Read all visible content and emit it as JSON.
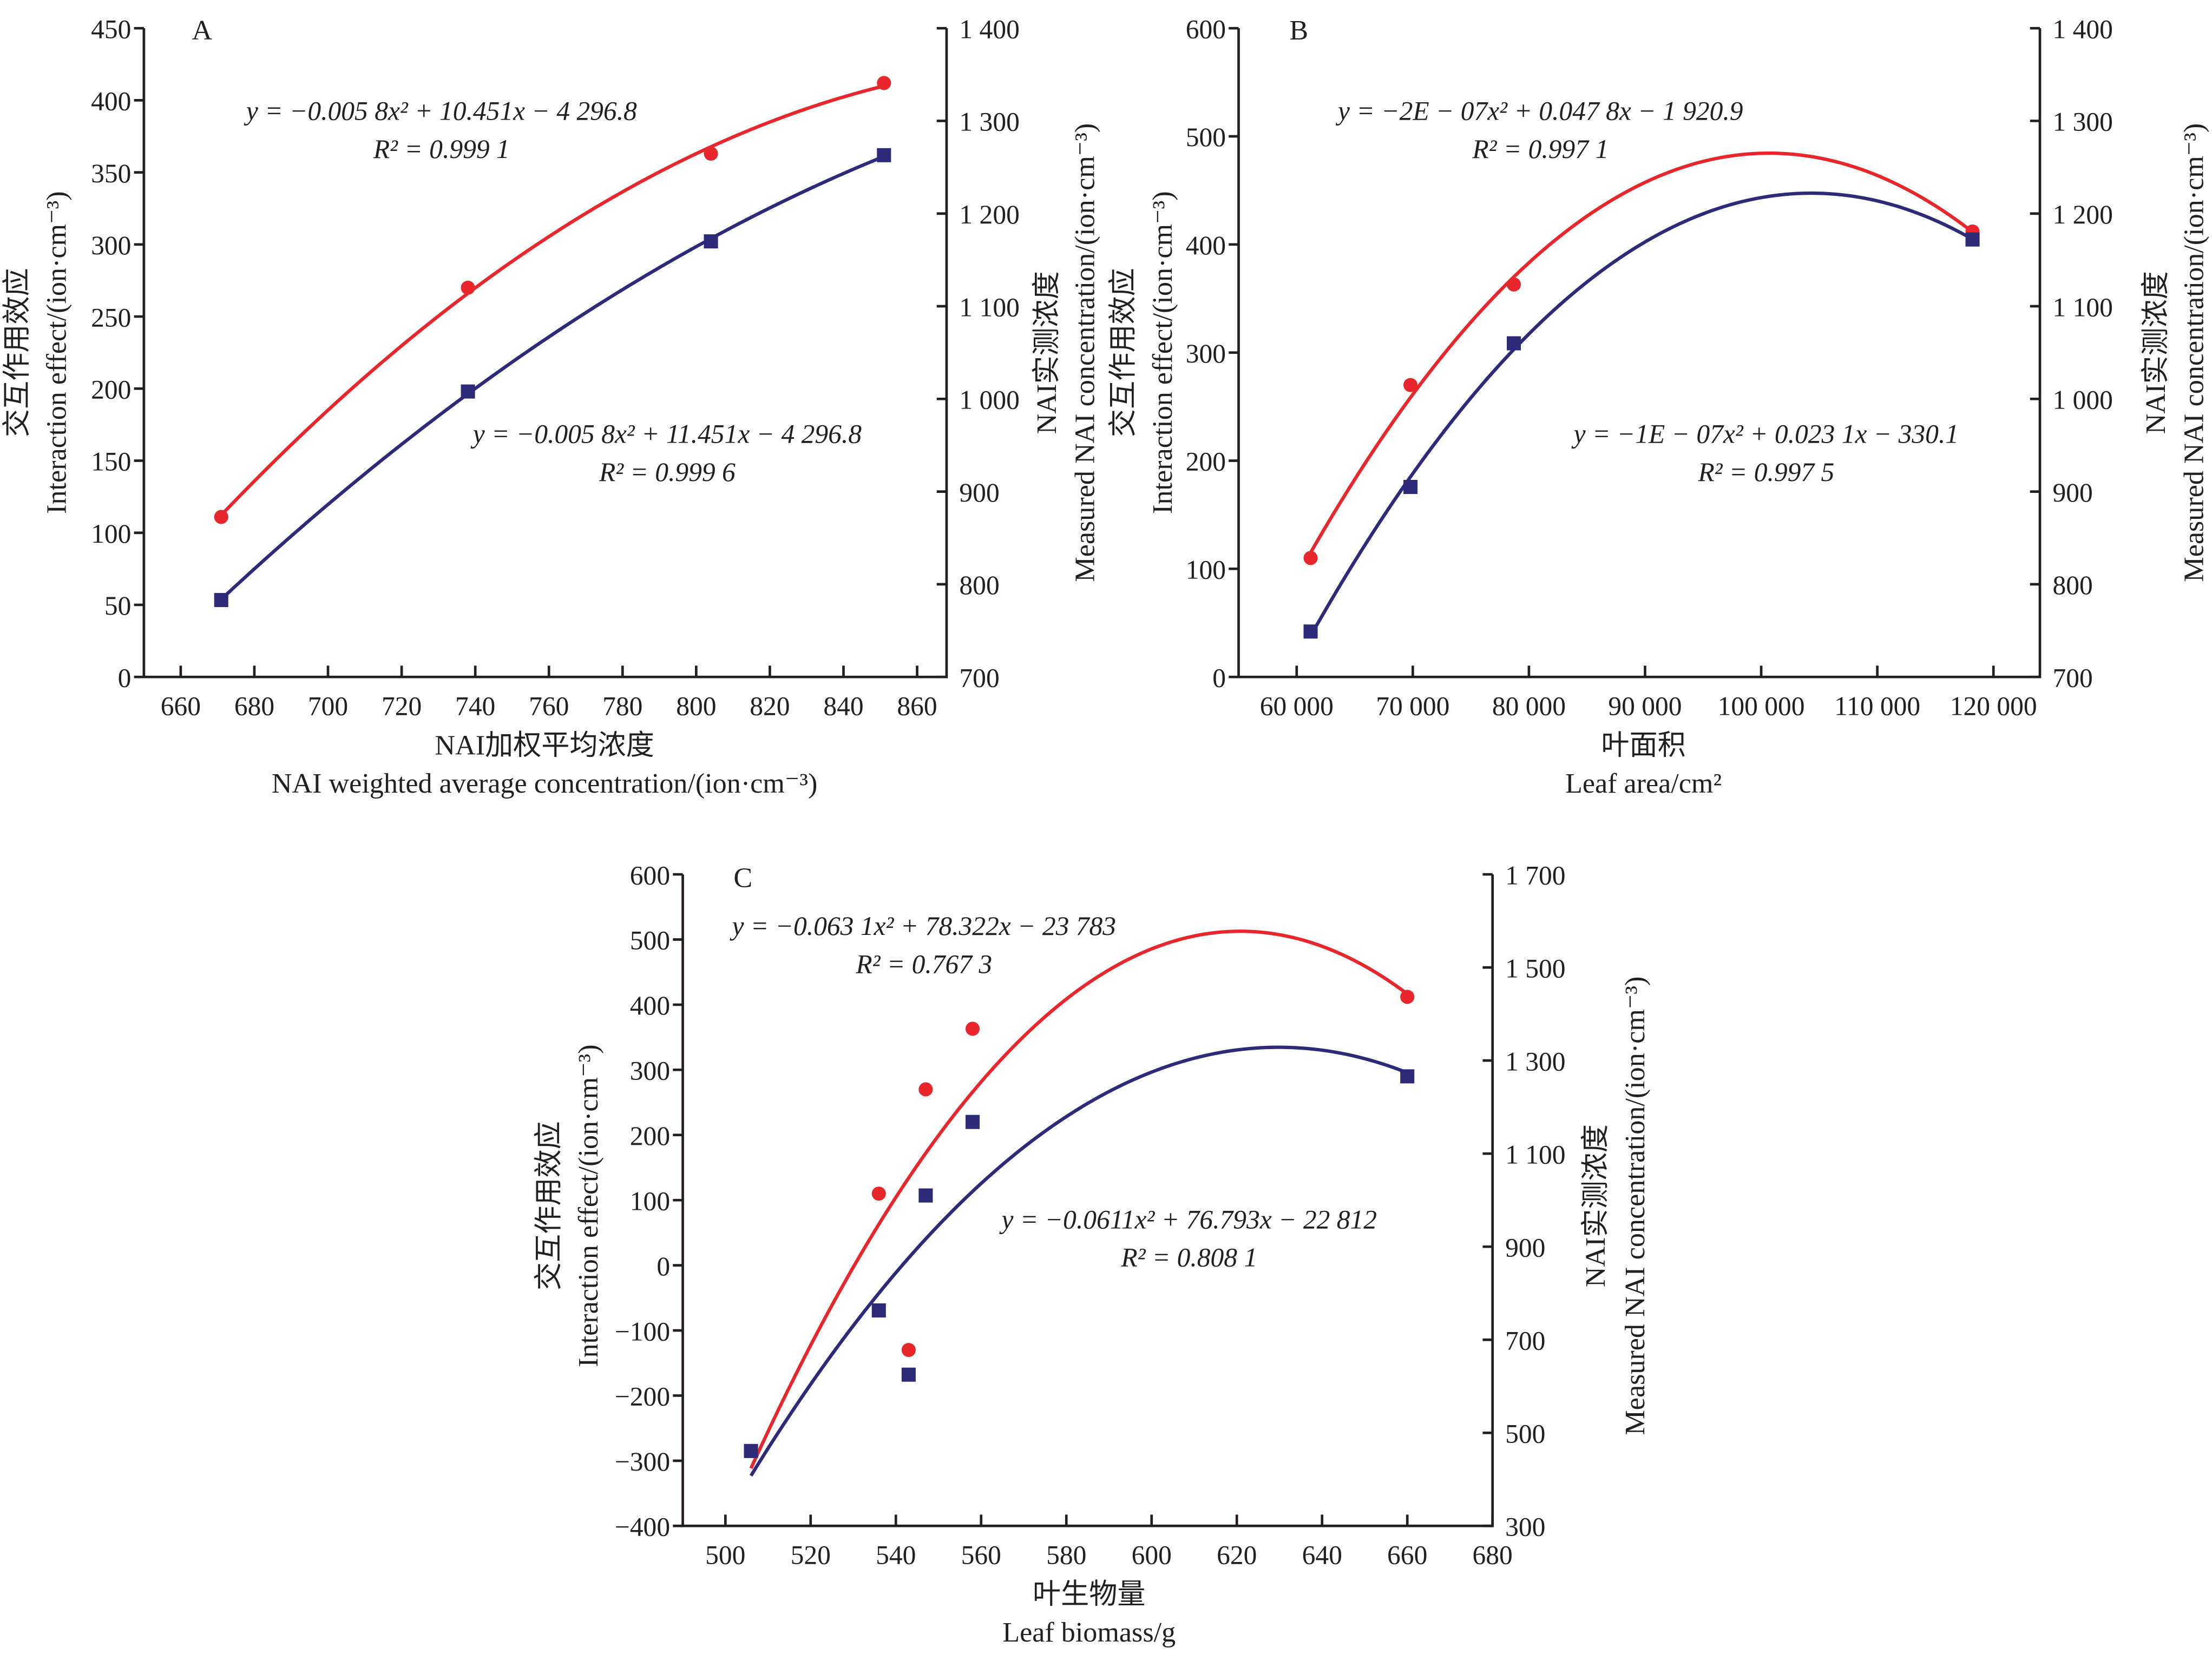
{
  "colors": {
    "interaction": "#e8262b",
    "measured": "#2e2a7a",
    "axis": "#231f20"
  },
  "chart_data": [
    {
      "type": "scatter",
      "panel_label": "A",
      "xlabel_cn": "NAI加权平均浓度",
      "xlabel": "NAI weighted average concentration/(ion·cm⁻³)",
      "ylabel_left_cn": "交互作用效应",
      "ylabel_left": "Interaction effect/(ion·cm⁻³)",
      "ylabel_right_cn": "NAI实测浓度",
      "ylabel_right": "Measured NAI concentration/(ion·cm⁻³)",
      "xlim": [
        650,
        868
      ],
      "ylim_left": [
        0,
        450
      ],
      "ylim_right": [
        700,
        1400
      ],
      "xticks": [
        660,
        680,
        700,
        720,
        740,
        760,
        780,
        800,
        820,
        840,
        860
      ],
      "xtick_labels": [
        "660",
        "680",
        "700",
        "720",
        "740",
        "760",
        "780",
        "800",
        "820",
        "840",
        "860"
      ],
      "yticks_left": [
        0,
        50,
        100,
        150,
        200,
        250,
        300,
        350,
        400,
        450
      ],
      "ytick_labels_left": [
        "0",
        "50",
        "100",
        "150",
        "200",
        "250",
        "300",
        "350",
        "400",
        "450"
      ],
      "yticks_right": [
        700,
        800,
        900,
        1000,
        1100,
        1200,
        1300,
        1400
      ],
      "ytick_labels_right": [
        "700",
        "800",
        "900",
        "1 000",
        "1 100",
        "1 200",
        "1 300",
        "1 400"
      ],
      "grid": false,
      "series": [
        {
          "name": "Interaction effect",
          "axis": "left",
          "marker": "circle",
          "x": [
            671,
            738,
            804,
            851
          ],
          "y": [
            111,
            270,
            363,
            412
          ],
          "equation": "y = −0.005 8x² + 10.451x − 4 296.8",
          "r2": "R² = 0.999 1"
        },
        {
          "name": "Measured NAI concentration",
          "axis": "right",
          "marker": "square",
          "x": [
            671,
            738,
            804,
            851
          ],
          "y": [
            783,
            1008,
            1170,
            1263
          ],
          "equation": "y = −0.005 8x² + 11.451x − 4 296.8",
          "r2": "R² = 0.999 6"
        }
      ]
    },
    {
      "type": "scatter",
      "panel_label": "B",
      "xlabel_cn": "叶面积",
      "xlabel": "Leaf area/cm²",
      "ylabel_left_cn": "交互作用效应",
      "ylabel_left": "Interaction effect/(ion·cm⁻³)",
      "ylabel_right_cn": "NAI实测浓度",
      "ylabel_right": "Measured NAI concentration/(ion·cm⁻³)",
      "xlim": [
        55000,
        124000
      ],
      "ylim_left": [
        0,
        600
      ],
      "ylim_right": [
        700,
        1400
      ],
      "xticks": [
        60000,
        70000,
        80000,
        90000,
        100000,
        110000,
        120000
      ],
      "xtick_labels": [
        "60 000",
        "70 000",
        "80 000",
        "90 000",
        "100 000",
        "110 000",
        "120 000"
      ],
      "yticks_left": [
        0,
        100,
        200,
        300,
        400,
        500,
        600
      ],
      "ytick_labels_left": [
        "0",
        "100",
        "200",
        "300",
        "400",
        "500",
        "600"
      ],
      "yticks_right": [
        700,
        800,
        900,
        1000,
        1100,
        1200,
        1300,
        1400
      ],
      "ytick_labels_right": [
        "700",
        "800",
        "900",
        "1 000",
        "1 100",
        "1 200",
        "1 300",
        "1 400"
      ],
      "grid": false,
      "series": [
        {
          "name": "Interaction effect",
          "axis": "left",
          "marker": "circle",
          "x": [
            61200,
            69800,
            78700,
            118200
          ],
          "y": [
            110,
            270,
            363,
            412
          ],
          "equation": "y = −2E − 07x² + 0.047 8x − 1 920.9",
          "r2": "R² = 0.997 1"
        },
        {
          "name": "Measured NAI concentration",
          "axis": "right",
          "marker": "square",
          "x": [
            61200,
            69800,
            78700,
            118200
          ],
          "y": [
            749,
            905,
            1060,
            1172
          ],
          "equation": "y = −1E − 07x² + 0.023 1x − 330.1",
          "r2": "R² = 0.997 5"
        }
      ]
    },
    {
      "type": "scatter",
      "panel_label": "C",
      "xlabel_cn": "叶生物量",
      "xlabel": "Leaf biomass/g",
      "ylabel_left_cn": "交互作用效应",
      "ylabel_left": "Interaction effect/(ion·cm⁻³)",
      "ylabel_right_cn": "NAI实测浓度",
      "ylabel_right": "Measured NAI concentration/(ion·cm⁻³)",
      "xlim": [
        490,
        680
      ],
      "ylim_left": [
        -400,
        600
      ],
      "ylim_right": [
        300,
        1700
      ],
      "xticks": [
        500,
        520,
        540,
        560,
        580,
        600,
        620,
        640,
        660,
        680
      ],
      "xtick_labels": [
        "500",
        "520",
        "540",
        "560",
        "580",
        "600",
        "620",
        "640",
        "660",
        "680"
      ],
      "yticks_left": [
        -400,
        -300,
        -200,
        -100,
        0,
        100,
        200,
        300,
        400,
        500,
        600
      ],
      "ytick_labels_left": [
        "−400",
        "−300",
        "−200",
        "−100",
        "0",
        "100",
        "200",
        "300",
        "400",
        "500",
        "600"
      ],
      "yticks_right": [
        300,
        500,
        700,
        900,
        1100,
        1300,
        1500,
        1700
      ],
      "ytick_labels_right": [
        "300",
        "500",
        "700",
        "900",
        "1 100",
        "1 300",
        "1 500",
        "1 700"
      ],
      "grid": false,
      "series": [
        {
          "name": "Interaction effect",
          "axis": "left",
          "marker": "circle",
          "x": [
            506,
            536,
            543,
            547,
            558,
            660
          ],
          "y": [
            -285,
            110,
            -130,
            270,
            363,
            412
          ],
          "equation": "y = −0.063 1x² + 78.322x − 23 783",
          "r2": "R² = 0.767 3"
        },
        {
          "name": "Measured NAI concentration",
          "axis": "right",
          "marker": "square",
          "x": [
            506,
            536,
            543,
            547,
            558,
            660
          ],
          "y": [
            461,
            763,
            625,
            1010,
            1168,
            1266
          ],
          "equation": "y = −0.0611x² + 76.793x − 22 812",
          "r2": "R² = 0.808 1"
        }
      ]
    }
  ]
}
